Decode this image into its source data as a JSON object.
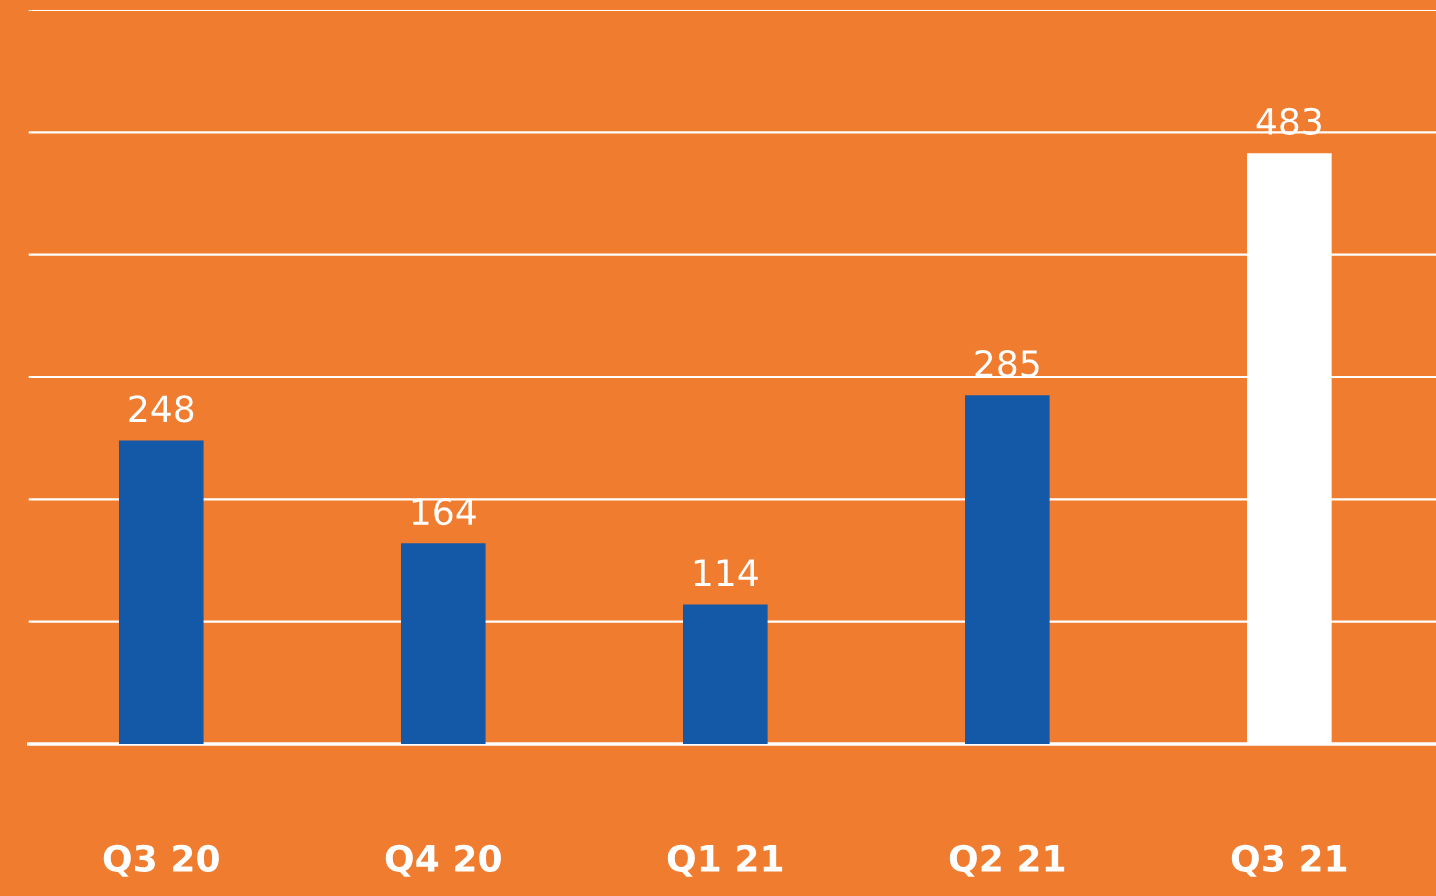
{
  "chart_data": {
    "type": "bar",
    "categories": [
      "Q3 20",
      "Q4 20",
      "Q1 21",
      "Q2 21",
      "Q3 21"
    ],
    "values": [
      248,
      164,
      114,
      285,
      483
    ],
    "colors": [
      "#1459a8",
      "#1459a8",
      "#1459a8",
      "#1459a8",
      "#ffffff"
    ],
    "data_labels": true,
    "ylim": [
      0,
      600
    ],
    "yticks": [
      {
        "value": 0,
        "label": null
      },
      {
        "value": 100,
        "label": null
      },
      {
        "value": 200,
        "label": null
      },
      {
        "value": 300,
        "label": null
      },
      {
        "value": 400,
        "label": null
      },
      {
        "value": 500,
        "label": null
      },
      {
        "value": 600,
        "label": null
      }
    ],
    "grid": "y",
    "tick_labels": "x"
  }
}
